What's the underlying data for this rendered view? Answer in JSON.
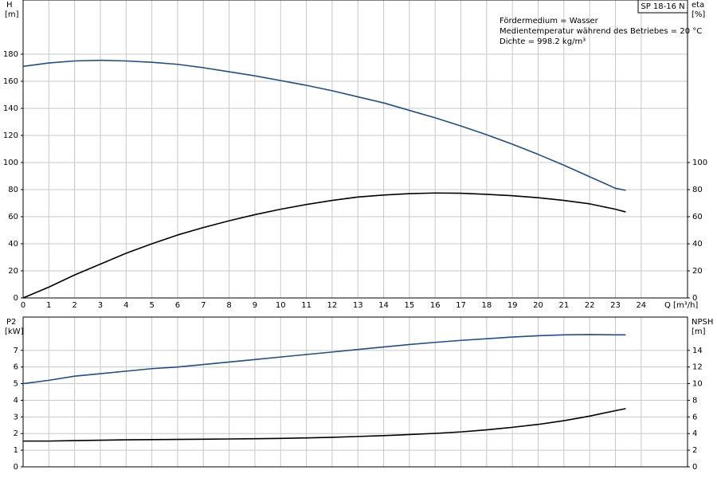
{
  "chart_data": [
    {
      "type": "line",
      "title": "SP 18-16 N",
      "annotations": [
        "Fördermedium = Wasser",
        "Medientemperatur während des Betriebes = 20 °C",
        "Dichte = 998.2 kg/m³"
      ],
      "x_label": "Q [m³/h]",
      "y_label": "H",
      "y_unit": "[m]",
      "y2_label": "eta",
      "y2_unit": "[%]",
      "x": [
        0,
        1,
        2,
        3,
        4,
        5,
        6,
        7,
        8,
        9,
        10,
        11,
        12,
        13,
        14,
        15,
        16,
        17,
        18,
        19,
        20,
        21,
        22,
        23,
        23.4
      ],
      "xlim": [
        0,
        25.8
      ],
      "xticks": [
        0,
        1,
        2,
        3,
        4,
        5,
        6,
        7,
        8,
        9,
        10,
        11,
        12,
        13,
        14,
        15,
        16,
        17,
        18,
        19,
        20,
        21,
        22,
        23,
        24
      ],
      "ylim": [
        0,
        220
      ],
      "yticks": [
        0,
        20,
        40,
        60,
        80,
        100,
        120,
        140,
        160,
        180
      ],
      "y2lim": [
        0,
        220
      ],
      "y2ticks": [
        0,
        20,
        40,
        60,
        80,
        100
      ],
      "grid": true,
      "series": [
        {
          "name": "H",
          "color": "#1f4e8c",
          "axis": "y",
          "values": [
            171,
            173.5,
            175,
            175.5,
            175,
            174,
            172.5,
            170,
            167,
            164,
            160.5,
            157,
            153,
            148.5,
            144,
            138.5,
            133,
            127,
            120.5,
            113.5,
            106,
            98,
            89.5,
            81,
            79.5
          ]
        },
        {
          "name": "eta",
          "color": "#000000",
          "axis": "y2",
          "values": [
            0,
            8,
            17,
            25,
            33,
            40,
            46.5,
            52,
            57,
            61.5,
            65.5,
            69,
            72,
            74.5,
            76,
            77,
            77.5,
            77.3,
            76.5,
            75.5,
            74,
            72,
            69.5,
            65.5,
            63.5
          ]
        }
      ]
    },
    {
      "type": "line",
      "y_label": "P2",
      "y_unit": "[kW]",
      "y2_label": "NPSH",
      "y2_unit": "[m]",
      "x": [
        0,
        1,
        2,
        3,
        4,
        5,
        6,
        7,
        8,
        9,
        10,
        11,
        12,
        13,
        14,
        15,
        16,
        17,
        18,
        19,
        20,
        21,
        22,
        23,
        23.4
      ],
      "xlim": [
        0,
        25.8
      ],
      "ylim": [
        0,
        9
      ],
      "yticks": [
        0,
        1,
        2,
        3,
        4,
        5,
        6,
        7
      ],
      "y2lim": [
        0,
        18
      ],
      "y2ticks": [
        0,
        2,
        4,
        6,
        8,
        10,
        12,
        14
      ],
      "grid": true,
      "series": [
        {
          "name": "P2",
          "color": "#1f4e8c",
          "axis": "y",
          "values": [
            5.0,
            5.2,
            5.45,
            5.6,
            5.75,
            5.9,
            6.0,
            6.15,
            6.3,
            6.45,
            6.6,
            6.75,
            6.9,
            7.05,
            7.2,
            7.35,
            7.48,
            7.6,
            7.7,
            7.8,
            7.88,
            7.93,
            7.95,
            7.93,
            7.93
          ]
        },
        {
          "name": "NPSH",
          "color": "#000000",
          "axis": "y2",
          "values": [
            3.1,
            3.1,
            3.15,
            3.2,
            3.25,
            3.27,
            3.3,
            3.32,
            3.35,
            3.38,
            3.42,
            3.48,
            3.55,
            3.65,
            3.75,
            3.88,
            4.02,
            4.2,
            4.45,
            4.75,
            5.1,
            5.55,
            6.1,
            6.75,
            7.0
          ]
        }
      ]
    }
  ]
}
